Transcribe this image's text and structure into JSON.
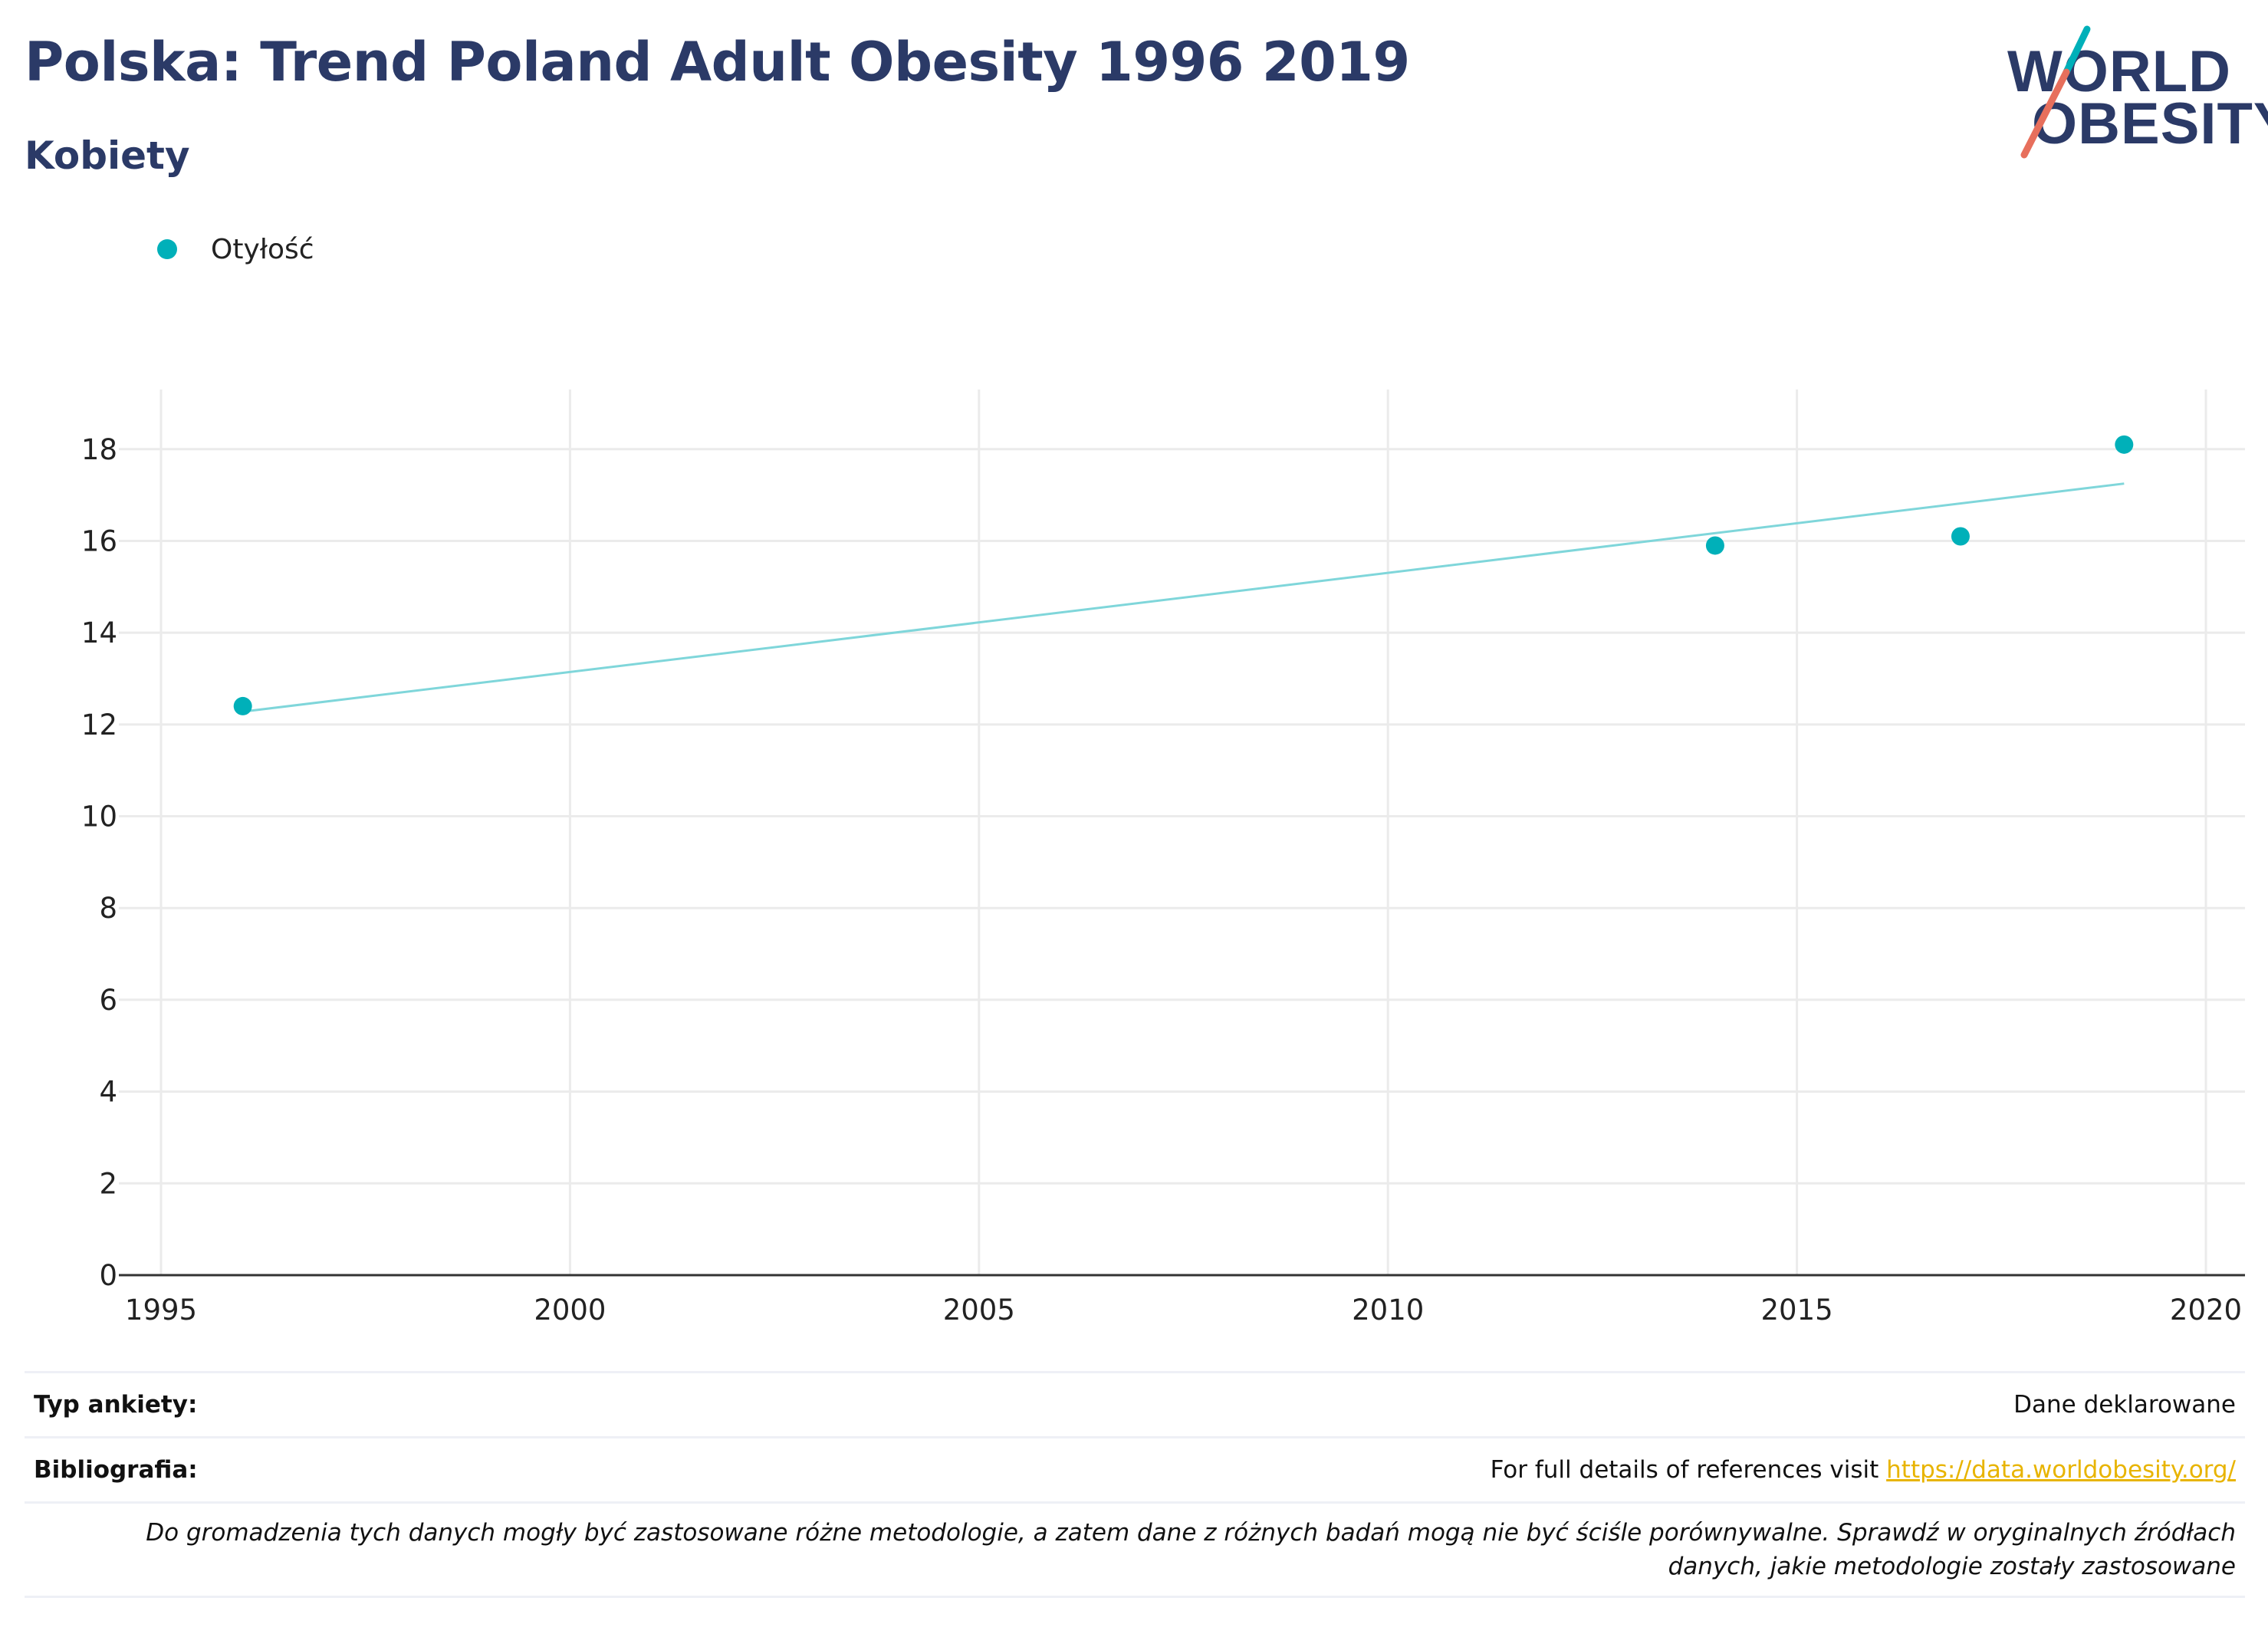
{
  "header": {
    "title": "Polska: Trend Poland Adult Obesity 1996 2019",
    "subtitle": "Kobiety"
  },
  "logo": {
    "line1": "WORLD",
    "line2": "OBESITY",
    "colors": {
      "navy": "#2b3a67",
      "teal": "#00b0b9",
      "coral": "#e76f5c"
    }
  },
  "legend": {
    "label": "Otyłość",
    "color": "#00b0b9"
  },
  "chart_data": {
    "type": "scatter",
    "series": [
      {
        "name": "Otyłość",
        "x": [
          1996,
          2014,
          2017,
          2019
        ],
        "y": [
          12.4,
          15.9,
          16.1,
          18.1
        ],
        "color": "#00b0b9"
      }
    ],
    "trendline": {
      "x": [
        1996,
        2019
      ],
      "y": [
        12.28,
        17.25
      ],
      "color": "#7fd6da"
    },
    "xlim": [
      1995,
      2020
    ],
    "ylim": [
      0,
      19.3
    ],
    "xticks": [
      1995,
      2000,
      2005,
      2010,
      2015,
      2020
    ],
    "yticks": [
      0,
      2,
      4,
      6,
      8,
      10,
      12,
      14,
      16,
      18
    ],
    "grid": true
  },
  "footer": {
    "survey_label": "Typ ankiety:",
    "survey_value": "Dane deklarowane",
    "bib_label": "Bibliografia:",
    "bib_text": "For full details of references visit ",
    "bib_link": "https://data.worldobesity.org/",
    "note": "Do gromadzenia tych danych mogły być zastosowane różne metodologie, a zatem dane z różnych badań mogą nie być ściśle porównywalne. Sprawdź w oryginalnych źródłach danych, jakie metodologie zostały zastosowane"
  }
}
